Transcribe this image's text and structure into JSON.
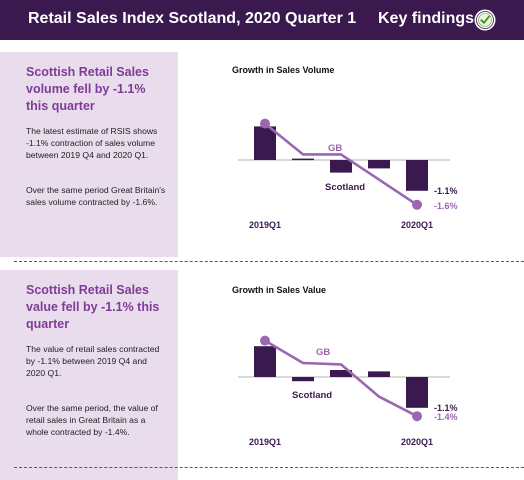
{
  "header": {
    "title": "Retail Sales Index Scotland, 2020 Quarter 1",
    "right_label": "Key findings",
    "background": "#3a1a4e",
    "seal_icon": "accredited-official-statistics-seal"
  },
  "sections": [
    {
      "headline": "Scottish Retail Sales volume fell by -1.1% this quarter",
      "paragraphs": [
        "The latest estimate of RSIS shows -1.1% contraction of sales volume between 2019 Q4 and 2020 Q1.",
        "Over the same period Great Britain's sales volume contracted by -1.6%."
      ]
    },
    {
      "headline": "Scottish Retail Sales value fell by -1.1% this quarter",
      "paragraphs": [
        "The value of retail sales contracted by -1.1% between 2019 Q4 and 2020 Q1.",
        "Over the same period, the value of retail sales in Great Britain as a whole contracted by -1.4%."
      ]
    }
  ],
  "colors": {
    "accent": "#7e3c97",
    "bar": "#3a1a4e",
    "gb_line": "#9a67b0",
    "panel": "#e9dcec"
  },
  "chart_data": [
    {
      "type": "bar",
      "title": "Growth in Sales Volume",
      "categories": [
        "2019Q1",
        "",
        "",
        "",
        "2020Q1"
      ],
      "series": [
        {
          "name": "Scotland",
          "type": "bar",
          "values": [
            1.2,
            0.05,
            -0.45,
            -0.3,
            -1.1
          ],
          "end_label": "-1.1%"
        },
        {
          "name": "GB",
          "type": "line",
          "values": [
            1.3,
            0.2,
            0.2,
            -0.7,
            -1.6
          ],
          "end_label": "-1.6%"
        }
      ],
      "ylim": [
        -1.8,
        1.6
      ]
    },
    {
      "type": "bar",
      "title": "Growth in Sales Value",
      "categories": [
        "2019Q1",
        "",
        "",
        "",
        "2020Q1"
      ],
      "series": [
        {
          "name": "Scotland",
          "type": "bar",
          "values": [
            1.1,
            -0.15,
            0.25,
            0.2,
            -1.1
          ],
          "end_label": "-1.1%"
        },
        {
          "name": "GB",
          "type": "line",
          "values": [
            1.3,
            0.5,
            0.45,
            -0.7,
            -1.4
          ],
          "end_label": "-1.4%"
        }
      ],
      "ylim": [
        -1.8,
        1.6
      ]
    }
  ]
}
